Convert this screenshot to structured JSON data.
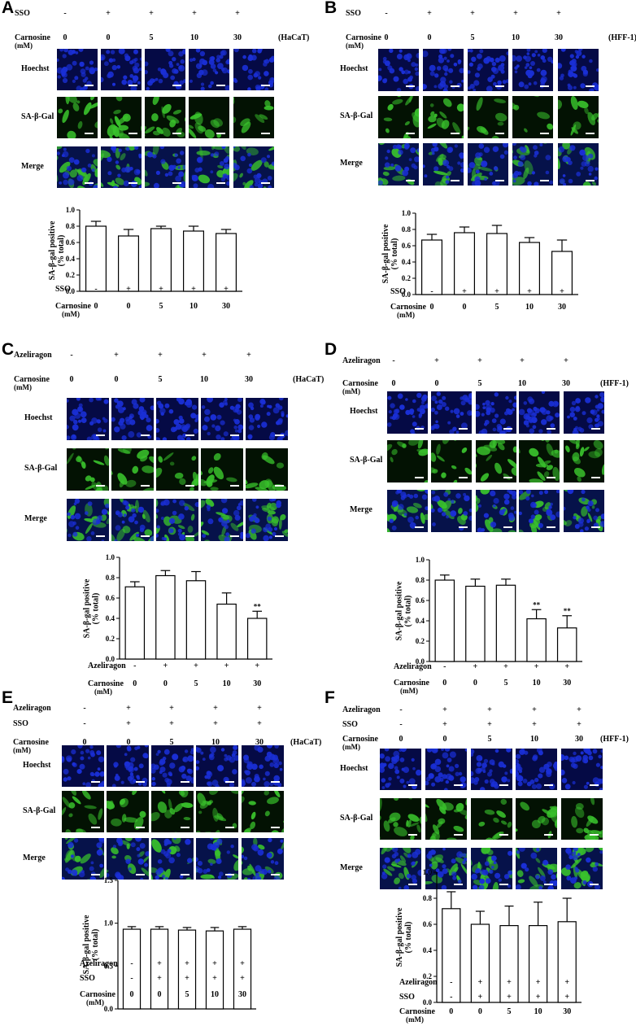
{
  "colors": {
    "hoechst": "#1a2fd6",
    "sa_gal": "#39c22c",
    "merge_bg": "#0f1c6e"
  },
  "rows": [
    "Hoechst",
    "SA-β-Gal",
    "Merge"
  ],
  "panels": [
    {
      "id": "A",
      "cell": "HaCaT",
      "tile_rows": [
        "Hoechst",
        "SA-β-Gal",
        "Merge"
      ],
      "conditions": [
        {
          "name": "SSO",
          "unit": "",
          "values": [
            "-",
            "+",
            "+",
            "+",
            "+"
          ]
        },
        {
          "name": "Carnosine",
          "unit": "(mM)",
          "values": [
            "0",
            "0",
            "5",
            "10",
            "30"
          ]
        }
      ],
      "cell_label": "(HaCaT)"
    },
    {
      "id": "B",
      "cell": "HFF-1",
      "tile_rows": [
        "Hoechst",
        "SA-β-Gal",
        "Merge"
      ],
      "conditions": [
        {
          "name": "SSO",
          "unit": "",
          "values": [
            "-",
            "+",
            "+",
            "+",
            "+"
          ]
        },
        {
          "name": "Carnosine",
          "unit": "(mM)",
          "values": [
            "0",
            "0",
            "5",
            "10",
            "30"
          ]
        }
      ],
      "cell_label": "(HFF-1)"
    },
    {
      "id": "C",
      "cell": "HaCaT",
      "tile_rows": [
        "Hoechst",
        "SA-β-Gal",
        "Merge"
      ],
      "conditions": [
        {
          "name": "Azeliragon",
          "unit": "",
          "values": [
            "-",
            "+",
            "+",
            "+",
            "+"
          ]
        },
        {
          "name": "Carnosine",
          "unit": "(mM)",
          "values": [
            "0",
            "0",
            "5",
            "10",
            "30"
          ]
        }
      ],
      "cell_label": "(HaCaT)"
    },
    {
      "id": "D",
      "cell": "HFF-1",
      "tile_rows": [
        "Hoechst",
        "SA-β-Gal",
        "Merge"
      ],
      "conditions": [
        {
          "name": "Azeliragon",
          "unit": "",
          "values": [
            "-",
            "+",
            "+",
            "+",
            "+"
          ]
        },
        {
          "name": "Carnosine",
          "unit": "(mM)",
          "values": [
            "0",
            "0",
            "5",
            "10",
            "30"
          ]
        }
      ],
      "cell_label": "(HFF-1)"
    },
    {
      "id": "E",
      "cell": "HaCaT",
      "tile_rows": [
        "Hoechst",
        "SA-β-Gal",
        "Merge"
      ],
      "conditions": [
        {
          "name": "Azeliragon",
          "unit": "",
          "values": [
            "-",
            "+",
            "+",
            "+",
            "+"
          ]
        },
        {
          "name": "SSO",
          "unit": "",
          "values": [
            "-",
            "+",
            "+",
            "+",
            "+"
          ]
        },
        {
          "name": "Carnosine",
          "unit": "(mM)",
          "values": [
            "0",
            "0",
            "5",
            "10",
            "30"
          ]
        }
      ],
      "cell_label": "(HaCaT)"
    },
    {
      "id": "F",
      "cell": "HFF-1",
      "tile_rows": [
        "Hoechst",
        "SA-β-Gal",
        "Merge"
      ],
      "conditions": [
        {
          "name": "Azeliragon",
          "unit": "",
          "values": [
            "-",
            "+",
            "+",
            "+",
            "+"
          ]
        },
        {
          "name": "SSO",
          "unit": "",
          "values": [
            "-",
            "+",
            "+",
            "+",
            "+"
          ]
        },
        {
          "name": "Carnosine",
          "unit": "(mM)",
          "values": [
            "0",
            "0",
            "5",
            "10",
            "30"
          ]
        }
      ],
      "cell_label": "(HFF-1)"
    }
  ],
  "chart_data": [
    {
      "panel": "A",
      "type": "bar",
      "title": "",
      "ylabel": "SA-β-gal positive\n(% total)",
      "ylim": [
        0,
        1.0
      ],
      "yticks": [
        "0.0",
        "0.2",
        "0.4",
        "0.6",
        "0.8",
        "1.0"
      ],
      "values": [
        0.8,
        0.68,
        0.77,
        0.74,
        0.71
      ],
      "errors": [
        0.06,
        0.08,
        0.03,
        0.06,
        0.05
      ],
      "annotations": [
        "",
        "",
        "",
        "",
        ""
      ],
      "conditions": [
        {
          "name": "SSO",
          "unit": "",
          "values": [
            "-",
            "+",
            "+",
            "+",
            "+"
          ]
        },
        {
          "name": "Carnosine",
          "unit": "(mM)",
          "values": [
            "0",
            "0",
            "5",
            "10",
            "30"
          ]
        }
      ]
    },
    {
      "panel": "B",
      "type": "bar",
      "title": "",
      "ylabel": "SA-β-gal positive\n(% total)",
      "ylim": [
        0,
        1.0
      ],
      "yticks": [
        "0.0",
        "0.2",
        "0.4",
        "0.6",
        "0.8",
        "1.0"
      ],
      "values": [
        0.67,
        0.76,
        0.75,
        0.64,
        0.53
      ],
      "errors": [
        0.07,
        0.07,
        0.1,
        0.06,
        0.14
      ],
      "annotations": [
        "",
        "",
        "",
        "",
        ""
      ],
      "conditions": [
        {
          "name": "SSO",
          "unit": "",
          "values": [
            "-",
            "+",
            "+",
            "+",
            "+"
          ]
        },
        {
          "name": "Carnosine",
          "unit": "(mM)",
          "values": [
            "0",
            "0",
            "5",
            "10",
            "30"
          ]
        }
      ]
    },
    {
      "panel": "C",
      "type": "bar",
      "title": "",
      "ylabel": "SA-β-gal positive\n(% total)",
      "ylim": [
        0,
        1.0
      ],
      "yticks": [
        "0.0",
        "0.2",
        "0.4",
        "0.6",
        "0.8",
        "1.0"
      ],
      "values": [
        0.71,
        0.82,
        0.77,
        0.54,
        0.4
      ],
      "errors": [
        0.05,
        0.05,
        0.09,
        0.11,
        0.07
      ],
      "annotations": [
        "",
        "",
        "",
        "",
        "**"
      ],
      "conditions": [
        {
          "name": "Azeliragon",
          "unit": "",
          "values": [
            "-",
            "+",
            "+",
            "+",
            "+"
          ]
        },
        {
          "name": "Carnosine",
          "unit": "(mM)",
          "values": [
            "0",
            "0",
            "5",
            "10",
            "30"
          ]
        }
      ]
    },
    {
      "panel": "D",
      "type": "bar",
      "title": "",
      "ylabel": "SA-β-gal positive\n(% total)",
      "ylim": [
        0,
        1.0
      ],
      "yticks": [
        "0.0",
        "0.2",
        "0.4",
        "0.6",
        "0.8",
        "1.0"
      ],
      "values": [
        0.8,
        0.74,
        0.75,
        0.42,
        0.33
      ],
      "errors": [
        0.05,
        0.07,
        0.06,
        0.09,
        0.12
      ],
      "annotations": [
        "",
        "",
        "",
        "**",
        "**"
      ],
      "conditions": [
        {
          "name": "Azeliragon",
          "unit": "",
          "values": [
            "-",
            "+",
            "+",
            "+",
            "+"
          ]
        },
        {
          "name": "Carnosine",
          "unit": "(mM)",
          "values": [
            "0",
            "0",
            "5",
            "10",
            "30"
          ]
        }
      ]
    },
    {
      "panel": "E",
      "type": "bar",
      "title": "",
      "ylabel": "SA-β-gal positive\n(% total)",
      "ylim": [
        0,
        1.5
      ],
      "yticks": [
        "0.0",
        "0.5",
        "1.0",
        "1.5"
      ],
      "values": [
        0.93,
        0.93,
        0.92,
        0.91,
        0.93
      ],
      "errors": [
        0.03,
        0.03,
        0.03,
        0.04,
        0.03
      ],
      "annotations": [
        "",
        "",
        "",
        "",
        ""
      ],
      "conditions": [
        {
          "name": "Azeliragon",
          "unit": "",
          "values": [
            "-",
            "+",
            "+",
            "+",
            "+"
          ]
        },
        {
          "name": "SSO",
          "unit": "",
          "values": [
            "-",
            "+",
            "+",
            "+",
            "+"
          ]
        },
        {
          "name": "Carnosine",
          "unit": "(mM)",
          "values": [
            "0",
            "0",
            "5",
            "10",
            "30"
          ]
        }
      ]
    },
    {
      "panel": "F",
      "type": "bar",
      "title": "",
      "ylabel": "SA-β-gal positive\n(% total)",
      "ylim": [
        0,
        1.0
      ],
      "yticks": [
        "0.0",
        "0.2",
        "0.4",
        "0.6",
        "0.8",
        "1.0"
      ],
      "values": [
        0.72,
        0.6,
        0.59,
        0.59,
        0.62
      ],
      "errors": [
        0.13,
        0.1,
        0.15,
        0.18,
        0.18
      ],
      "annotations": [
        "",
        "",
        "",
        "",
        ""
      ],
      "conditions": [
        {
          "name": "Azeliragon",
          "unit": "",
          "values": [
            "-",
            "+",
            "+",
            "+",
            "+"
          ]
        },
        {
          "name": "SSO",
          "unit": "",
          "values": [
            "-",
            "+",
            "+",
            "+",
            "+"
          ]
        },
        {
          "name": "Carnosine",
          "unit": "(mM)",
          "values": [
            "0",
            "0",
            "5",
            "10",
            "30"
          ]
        }
      ]
    }
  ]
}
